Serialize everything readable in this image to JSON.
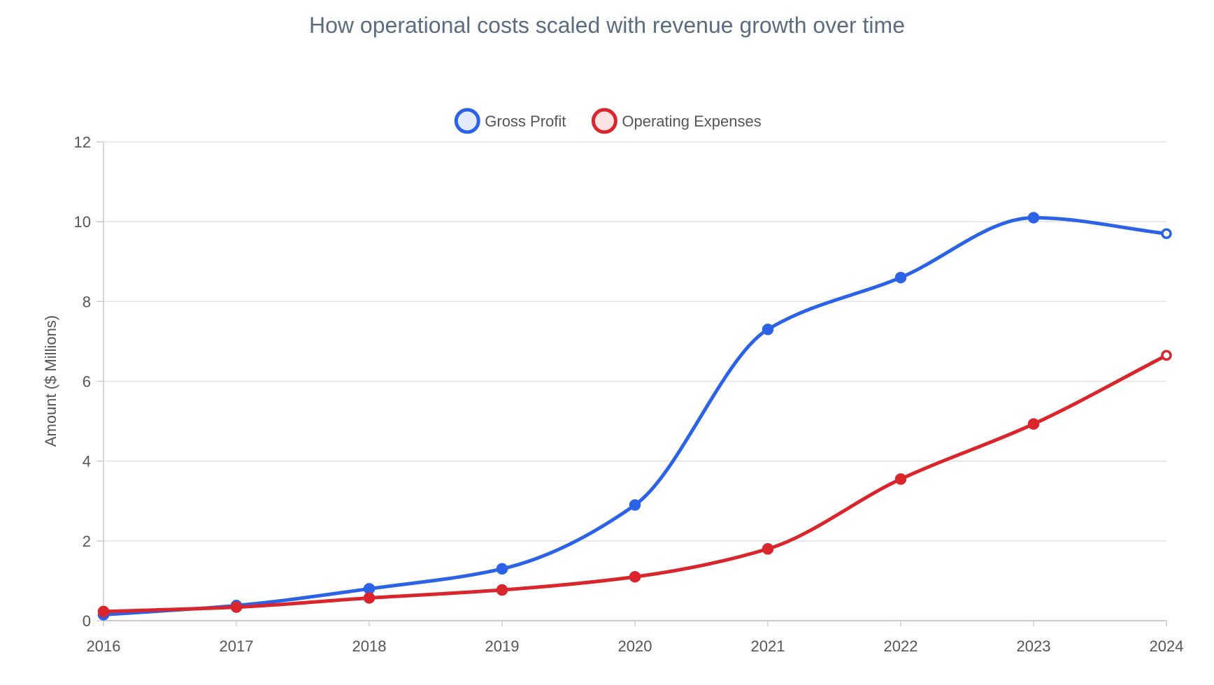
{
  "chart_data": {
    "type": "line",
    "title": "How operational costs scaled with revenue growth over time",
    "xlabel": "",
    "ylabel": "Amount ($ Millions)",
    "categories": [
      "2016",
      "2017",
      "2018",
      "2019",
      "2020",
      "2021",
      "2022",
      "2023",
      "2024"
    ],
    "ylim": [
      0,
      12
    ],
    "yticks": [
      0,
      2,
      4,
      6,
      8,
      10,
      12
    ],
    "grid": true,
    "legend_position": "top-center",
    "series": [
      {
        "name": "Gross Profit",
        "color": "#2c63e6",
        "fill": "#e3ebfb",
        "values": [
          0.15,
          0.38,
          0.8,
          1.3,
          2.9,
          7.3,
          8.6,
          10.1,
          9.7
        ]
      },
      {
        "name": "Operating Expenses",
        "color": "#d9262c",
        "fill": "#fbe3e4",
        "values": [
          0.23,
          0.34,
          0.57,
          0.77,
          1.1,
          1.8,
          3.55,
          4.93,
          6.65
        ]
      }
    ]
  }
}
